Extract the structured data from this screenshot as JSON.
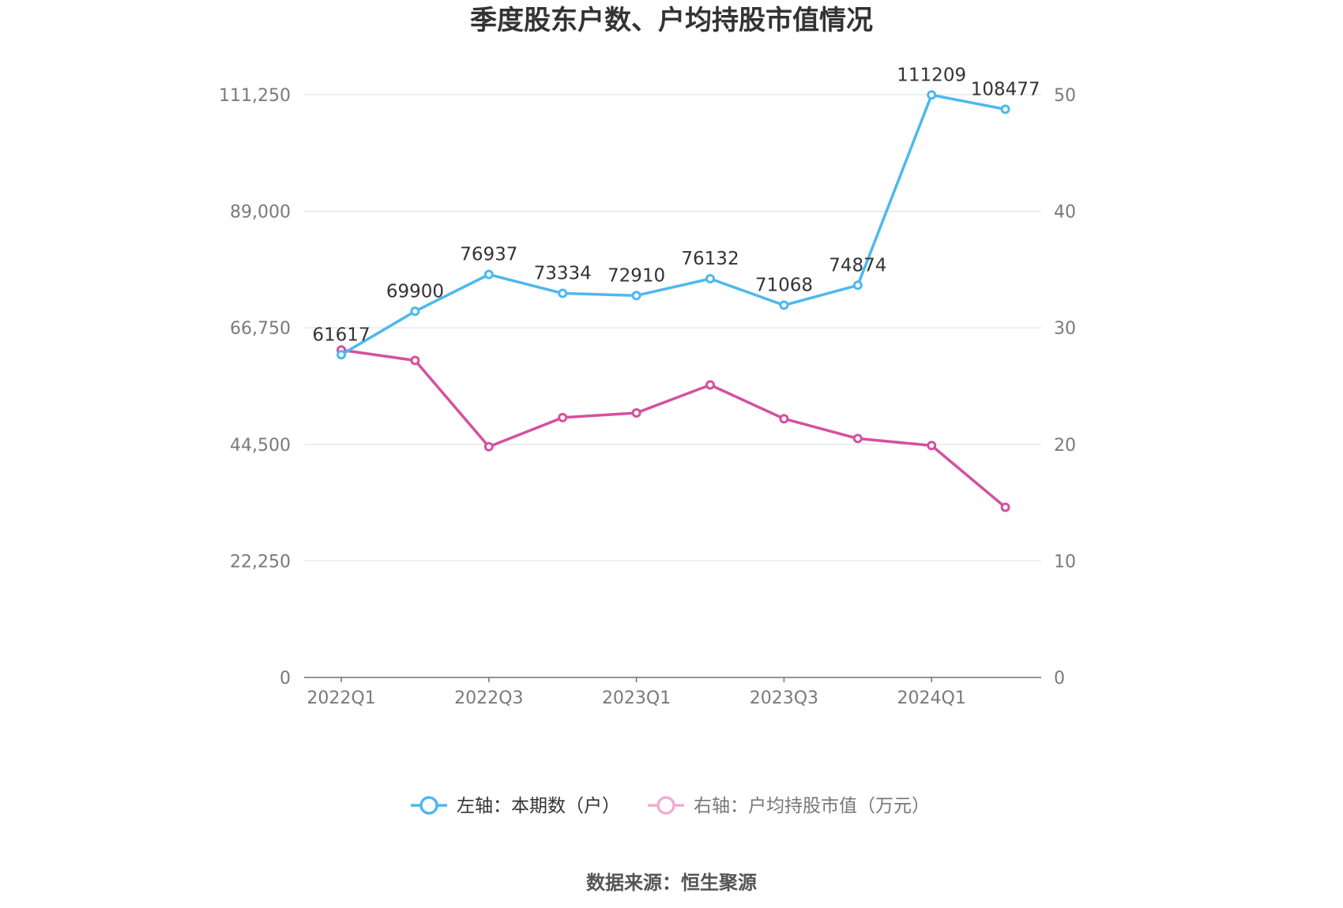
{
  "chart_data": {
    "type": "line",
    "title": "季度股东户数、户均持股市值情况",
    "categories": [
      "2022Q1",
      "2022Q2",
      "2022Q3",
      "2022Q4",
      "2023Q1",
      "2023Q2",
      "2023Q3",
      "2023Q4",
      "2024Q1",
      "2024Q2"
    ],
    "x_tick_labels": [
      "2022Q1",
      "2022Q3",
      "2023Q1",
      "2023Q3",
      "2024Q1"
    ],
    "left_axis": {
      "ylim": [
        0,
        111250
      ],
      "ticks": [
        0,
        22250,
        44500,
        66750,
        89000,
        111250
      ],
      "tick_labels": [
        "0",
        "22,250",
        "44,500",
        "66,750",
        "89,000",
        "111,250"
      ]
    },
    "right_axis": {
      "ylim": [
        0,
        50
      ],
      "ticks": [
        0,
        10,
        20,
        30,
        40,
        50
      ],
      "tick_labels": [
        "0",
        "10",
        "20",
        "30",
        "40",
        "50"
      ]
    },
    "series": [
      {
        "name": "左轴：本期数（户）",
        "axis": "left",
        "color": "#4db8ef",
        "values": [
          61617,
          69900,
          76937,
          73334,
          72910,
          76132,
          71068,
          74874,
          111209,
          108477
        ],
        "data_labels": [
          "61617",
          "69900",
          "76937",
          "73334",
          "72910",
          "76132",
          "71068",
          "74874",
          "111209",
          "108477"
        ]
      },
      {
        "name": "右轴：户均持股市值（万元）",
        "axis": "right",
        "color": "#d5509f",
        "values": [
          28.1,
          27.2,
          19.8,
          22.3,
          22.7,
          25.1,
          22.2,
          20.5,
          19.9,
          14.6
        ]
      }
    ],
    "grid": true,
    "legend_position": "bottom-center",
    "source": "数据来源：恒生聚源"
  }
}
